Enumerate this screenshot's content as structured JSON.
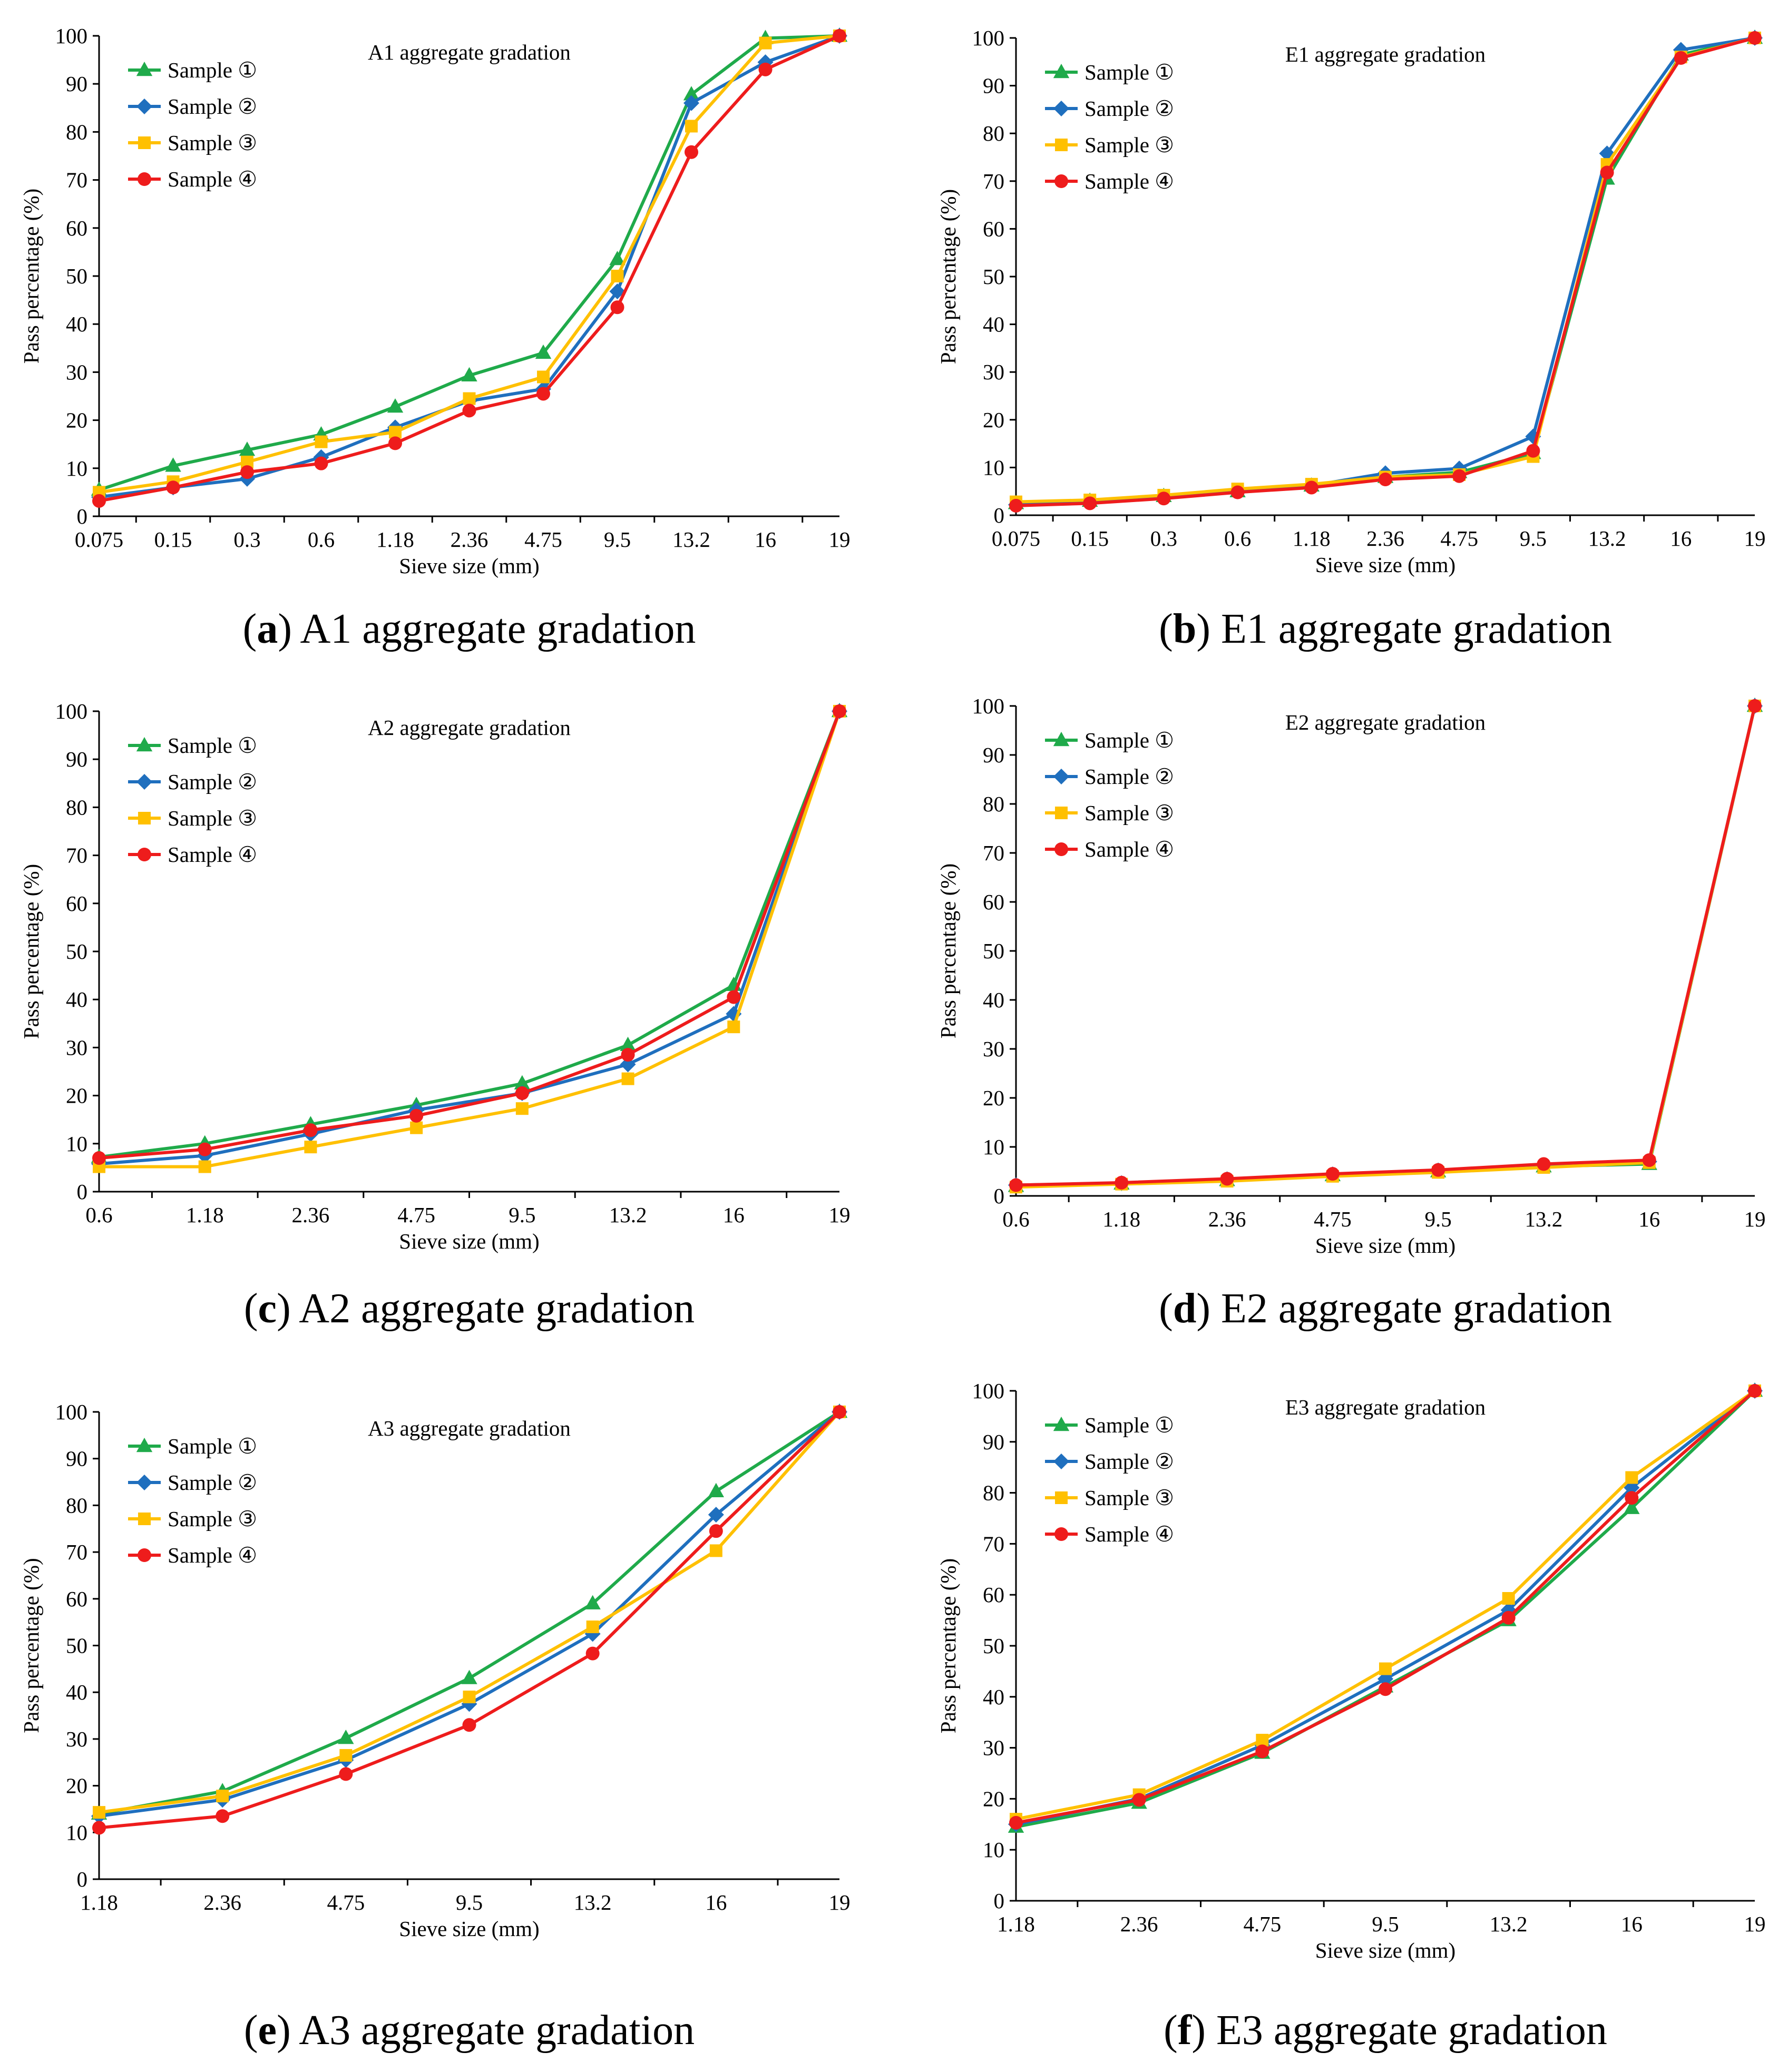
{
  "colors": {
    "sample_1": "#1faa4a",
    "sample_2": "#1f6fbe",
    "sample_3": "#ffc000",
    "sample_4": "#ee1c1c"
  },
  "markers": [
    "triangle",
    "diamond",
    "square",
    "circle"
  ],
  "chart_data": [
    {
      "type": "line",
      "title": "A1 aggregate gradation",
      "caption_letter": "a",
      "caption_text": " A1 aggregate gradation",
      "categories": [
        "0.075",
        "0.15",
        "0.3",
        "0.6",
        "1.18",
        "2.36",
        "4.75",
        "9.5",
        "13.2",
        "16",
        "19"
      ],
      "xlabel": "Sieve size (mm)",
      "ylabel": "Pass percentage (%)",
      "ylim": [
        0,
        100
      ],
      "yticks": [
        0,
        10,
        20,
        30,
        40,
        50,
        60,
        70,
        80,
        90,
        100
      ],
      "legend_position": "top-left",
      "series": [
        {
          "name": "Sample ①",
          "values": [
            5.5,
            10.5,
            13.8,
            17,
            22.8,
            29.3,
            34,
            53.5,
            87.8,
            99.5,
            100
          ]
        },
        {
          "name": "Sample ②",
          "values": [
            4,
            6,
            7.8,
            12.3,
            18.5,
            24,
            26.5,
            46.8,
            86,
            94.5,
            100
          ]
        },
        {
          "name": "Sample ③",
          "values": [
            5,
            7.2,
            11.3,
            15.5,
            17.5,
            24.5,
            29,
            50,
            81.2,
            98.5,
            100
          ]
        },
        {
          "name": "Sample ④",
          "values": [
            3.2,
            6,
            9.2,
            11,
            15.2,
            22,
            25.5,
            43.5,
            75.8,
            93,
            100
          ]
        }
      ]
    },
    {
      "type": "line",
      "title": "E1 aggregate gradation",
      "caption_letter": "b",
      "caption_text": " E1 aggregate gradation",
      "categories": [
        "0.075",
        "0.15",
        "0.3",
        "0.6",
        "1.18",
        "2.36",
        "4.75",
        "9.5",
        "13.2",
        "16",
        "19"
      ],
      "xlabel": "Sieve size (mm)",
      "ylabel": "Pass percentage (%)",
      "ylim": [
        0,
        100
      ],
      "yticks": [
        0,
        10,
        20,
        30,
        40,
        50,
        60,
        70,
        80,
        90,
        100
      ],
      "legend_position": "top-left",
      "series": [
        {
          "name": "Sample ①",
          "values": [
            2.5,
            3,
            4,
            5,
            6.2,
            8,
            9,
            13,
            70.5,
            96.5,
            100
          ]
        },
        {
          "name": "Sample ②",
          "values": [
            2.2,
            2.8,
            3.8,
            5,
            6.2,
            8.8,
            9.8,
            16.5,
            75.8,
            97.5,
            100
          ]
        },
        {
          "name": "Sample ③",
          "values": [
            2.8,
            3.2,
            4.2,
            5.5,
            6.5,
            8,
            8.5,
            12.3,
            73.5,
            96,
            100
          ]
        },
        {
          "name": "Sample ④",
          "values": [
            2,
            2.5,
            3.5,
            4.8,
            5.8,
            7.5,
            8.2,
            13.5,
            71.8,
            95.8,
            100
          ]
        }
      ]
    },
    {
      "type": "line",
      "title": "A2 aggregate gradation",
      "caption_letter": "c",
      "caption_text": " A2 aggregate gradation",
      "categories": [
        "0.6",
        "1.18",
        "2.36",
        "4.75",
        "9.5",
        "13.2",
        "16",
        "19"
      ],
      "xlabel": "Sieve size (mm)",
      "ylabel": "Pass percentage (%)",
      "ylim": [
        0,
        100
      ],
      "yticks": [
        0,
        10,
        20,
        30,
        40,
        50,
        60,
        70,
        80,
        90,
        100
      ],
      "legend_position": "top-left",
      "series": [
        {
          "name": "Sample ①",
          "values": [
            7.2,
            10,
            14,
            18,
            22.5,
            30.5,
            43,
            100
          ]
        },
        {
          "name": "Sample ②",
          "values": [
            5.8,
            7.5,
            12,
            17,
            20.5,
            26.5,
            37,
            100
          ]
        },
        {
          "name": "Sample ③",
          "values": [
            5.2,
            5.2,
            9.3,
            13.3,
            17.3,
            23.5,
            34.3,
            100
          ]
        },
        {
          "name": "Sample ④",
          "values": [
            7,
            8.8,
            12.8,
            15.8,
            20.5,
            28.5,
            40.5,
            100
          ]
        }
      ]
    },
    {
      "type": "line",
      "title": "E2 aggregate gradation",
      "caption_letter": "d",
      "caption_text": " E2 aggregate gradation",
      "categories": [
        "0.6",
        "1.18",
        "2.36",
        "4.75",
        "9.5",
        "13.2",
        "16",
        "19"
      ],
      "xlabel": "Sieve size (mm)",
      "ylabel": "Pass percentage (%)",
      "ylim": [
        0,
        100
      ],
      "yticks": [
        0,
        10,
        20,
        30,
        40,
        50,
        60,
        70,
        80,
        90,
        100
      ],
      "legend_position": "top-left",
      "series": [
        {
          "name": "Sample ①",
          "values": [
            2,
            2.5,
            3.2,
            4.2,
            5,
            6,
            6.5,
            100
          ]
        },
        {
          "name": "Sample ②",
          "values": [
            2.2,
            2.6,
            3.4,
            4.4,
            5.2,
            6.2,
            7,
            100
          ]
        },
        {
          "name": "Sample ③",
          "values": [
            1.8,
            2.4,
            3,
            4,
            4.8,
            5.8,
            6.8,
            100
          ]
        },
        {
          "name": "Sample ④",
          "values": [
            2.2,
            2.7,
            3.5,
            4.5,
            5.3,
            6.5,
            7.3,
            100
          ]
        }
      ]
    },
    {
      "type": "line",
      "title": "A3 aggregate gradation",
      "caption_letter": "e",
      "caption_text": " A3 aggregate gradation",
      "categories": [
        "1.18",
        "2.36",
        "4.75",
        "9.5",
        "13.2",
        "16",
        "19"
      ],
      "xlabel": "Sieve size (mm)",
      "ylabel": "Pass percentage (%)",
      "ylim": [
        0,
        100
      ],
      "yticks": [
        0,
        10,
        20,
        30,
        40,
        50,
        60,
        70,
        80,
        90,
        100
      ],
      "legend_position": "top-left",
      "series": [
        {
          "name": "Sample ①",
          "values": [
            14,
            18.8,
            30.2,
            43,
            59,
            83,
            100
          ]
        },
        {
          "name": "Sample ②",
          "values": [
            13.5,
            17,
            25.5,
            37.5,
            52.5,
            78,
            100
          ]
        },
        {
          "name": "Sample ③",
          "values": [
            14.3,
            17.8,
            26.5,
            39,
            54,
            70.3,
            100
          ]
        },
        {
          "name": "Sample ④",
          "values": [
            11,
            13.5,
            22.5,
            33,
            48.3,
            74.5,
            100
          ]
        }
      ]
    },
    {
      "type": "line",
      "title": "E3 aggregate gradation",
      "caption_letter": "f",
      "caption_text": " E3 aggregate gradation",
      "categories": [
        "1.18",
        "2.36",
        "4.75",
        "9.5",
        "13.2",
        "16",
        "19"
      ],
      "xlabel": "Sieve size (mm)",
      "ylabel": "Pass percentage (%)",
      "ylim": [
        0,
        100
      ],
      "yticks": [
        0,
        10,
        20,
        30,
        40,
        50,
        60,
        70,
        80,
        90,
        100
      ],
      "legend_position": "top-left",
      "series": [
        {
          "name": "Sample ①",
          "values": [
            14.5,
            19.2,
            29,
            42,
            55,
            77,
            100
          ]
        },
        {
          "name": "Sample ②",
          "values": [
            15,
            20,
            30.5,
            43.5,
            57,
            81,
            100
          ]
        },
        {
          "name": "Sample ③",
          "values": [
            16,
            20.8,
            31.5,
            45.5,
            59.3,
            83,
            100
          ]
        },
        {
          "name": "Sample ④",
          "values": [
            15.3,
            19.8,
            29.3,
            41.5,
            55.5,
            79,
            100
          ]
        }
      ]
    }
  ]
}
